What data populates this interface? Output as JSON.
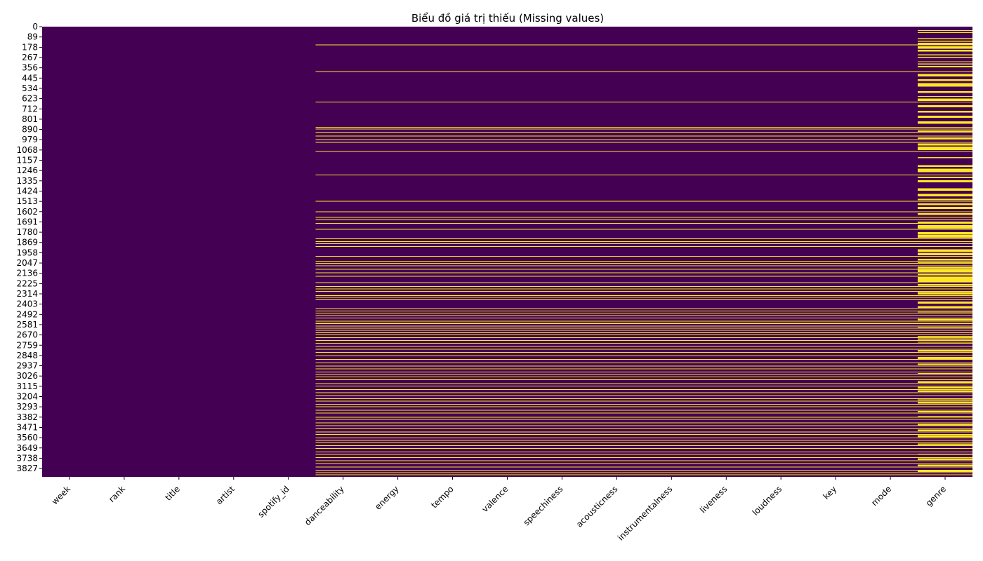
{
  "chart_data": {
    "type": "heatmap",
    "title": "Biểu đồ giá trị thiếu (Missing values)",
    "xlabel": "",
    "ylabel": "",
    "columns": [
      "week",
      "rank",
      "title",
      "artist",
      "spotify_id",
      "danceability",
      "energy",
      "tempo",
      "valence",
      "speechiness",
      "acousticness",
      "instrumentalness",
      "liveness",
      "loudness",
      "key",
      "mode",
      "genre"
    ],
    "row_count": 3900,
    "y_ticks": [
      0,
      89,
      178,
      267,
      356,
      445,
      534,
      623,
      712,
      801,
      890,
      979,
      1068,
      1157,
      1246,
      1335,
      1424,
      1513,
      1602,
      1691,
      1780,
      1869,
      1958,
      2047,
      2136,
      2225,
      2314,
      2403,
      2492,
      2581,
      2670,
      2759,
      2848,
      2937,
      3026,
      3115,
      3204,
      3293,
      3382,
      3471,
      3560,
      3649,
      3738,
      3827
    ],
    "colormap": "viridis",
    "color_present": "#440154",
    "color_missing": "#fde725",
    "colorbar": false,
    "audio_feature_missing_rows": [
      [
        155,
        159
      ],
      [
        385,
        389
      ],
      [
        650,
        654
      ],
      [
        868,
        871
      ],
      [
        884,
        888
      ],
      [
        910,
        913
      ],
      [
        945,
        948
      ],
      [
        975,
        978
      ],
      [
        998,
        1002
      ],
      [
        1078,
        1082
      ],
      [
        1282,
        1286
      ],
      [
        1510,
        1514
      ],
      [
        1602,
        1606
      ],
      [
        1650,
        1654
      ],
      [
        1670,
        1673
      ],
      [
        1700,
        1704
      ],
      [
        1754,
        1757
      ],
      [
        1836,
        1840
      ],
      [
        1860,
        1864
      ],
      [
        1878,
        1882
      ],
      [
        1900,
        1904
      ],
      [
        1986,
        1990
      ],
      [
        2028,
        2032
      ],
      [
        2046,
        2050
      ],
      [
        2068,
        2072
      ],
      [
        2100,
        2104
      ],
      [
        2128,
        2132
      ],
      [
        2160,
        2164
      ],
      [
        2215,
        2218
      ],
      [
        2248,
        2252
      ],
      [
        2270,
        2274
      ],
      [
        2290,
        2294
      ],
      [
        2326,
        2330
      ],
      [
        2342,
        2346
      ],
      [
        2364,
        2368
      ],
      [
        2440,
        2444
      ],
      [
        2460,
        2464
      ],
      [
        2478,
        2482
      ],
      [
        2500,
        2504
      ],
      [
        2522,
        2526
      ],
      [
        2548,
        2552
      ],
      [
        2568,
        2575
      ],
      [
        2590,
        2594
      ],
      [
        2608,
        2612
      ],
      [
        2626,
        2630
      ],
      [
        2650,
        2654
      ],
      [
        2664,
        2668
      ],
      [
        2690,
        2694
      ],
      [
        2715,
        2719
      ],
      [
        2740,
        2744
      ],
      [
        2768,
        2772
      ],
      [
        2790,
        2795
      ],
      [
        2820,
        2824
      ],
      [
        2850,
        2854
      ],
      [
        2880,
        2884
      ],
      [
        2910,
        2914
      ],
      [
        2936,
        2940
      ],
      [
        2960,
        2964
      ],
      [
        2988,
        2992
      ],
      [
        3010,
        3014
      ],
      [
        3030,
        3034
      ],
      [
        3055,
        3060
      ],
      [
        3088,
        3092
      ],
      [
        3110,
        3114
      ],
      [
        3140,
        3144
      ],
      [
        3168,
        3172
      ],
      [
        3196,
        3200
      ],
      [
        3220,
        3224
      ],
      [
        3240,
        3244
      ],
      [
        3268,
        3272
      ],
      [
        3290,
        3297
      ],
      [
        3320,
        3324
      ],
      [
        3345,
        3349
      ],
      [
        3380,
        3384
      ],
      [
        3400,
        3404
      ],
      [
        3428,
        3434
      ],
      [
        3455,
        3459
      ],
      [
        3482,
        3486
      ],
      [
        3508,
        3512
      ],
      [
        3530,
        3534
      ],
      [
        3560,
        3564
      ],
      [
        3580,
        3584
      ],
      [
        3600,
        3604
      ],
      [
        3628,
        3634
      ],
      [
        3650,
        3654
      ],
      [
        3680,
        3684
      ],
      [
        3702,
        3706
      ],
      [
        3730,
        3734
      ],
      [
        3758,
        3762
      ],
      [
        3782,
        3786
      ],
      [
        3812,
        3818
      ],
      [
        3838,
        3842
      ],
      [
        3860,
        3864
      ],
      [
        3878,
        3882
      ]
    ],
    "genre_extra_missing_rows": [
      [
        30,
        35
      ],
      [
        48,
        52
      ],
      [
        100,
        108
      ],
      [
        120,
        130
      ],
      [
        140,
        155
      ],
      [
        170,
        190
      ],
      [
        200,
        215
      ],
      [
        240,
        250
      ],
      [
        260,
        270
      ],
      [
        300,
        304
      ],
      [
        320,
        328
      ],
      [
        340,
        352
      ],
      [
        410,
        430
      ],
      [
        455,
        470
      ],
      [
        490,
        520
      ],
      [
        560,
        575
      ],
      [
        600,
        604
      ],
      [
        622,
        645
      ],
      [
        680,
        700
      ],
      [
        730,
        745
      ],
      [
        770,
        790
      ],
      [
        820,
        840
      ],
      [
        900,
        915
      ],
      [
        960,
        972
      ],
      [
        1010,
        1030
      ],
      [
        1040,
        1070
      ],
      [
        1130,
        1140
      ],
      [
        1200,
        1215
      ],
      [
        1230,
        1260
      ],
      [
        1300,
        1312
      ],
      [
        1330,
        1350
      ],
      [
        1400,
        1420
      ],
      [
        1450,
        1470
      ],
      [
        1490,
        1502
      ],
      [
        1530,
        1545
      ],
      [
        1560,
        1580
      ],
      [
        1615,
        1630
      ],
      [
        1690,
        1700
      ],
      [
        1720,
        1750
      ],
      [
        1780,
        1800
      ],
      [
        1805,
        1830
      ],
      [
        1930,
        1950
      ],
      [
        1960,
        1980
      ],
      [
        2010,
        2025
      ],
      [
        2040,
        2045
      ],
      [
        2080,
        2095
      ],
      [
        2105,
        2125
      ],
      [
        2140,
        2155
      ],
      [
        2170,
        2210
      ],
      [
        2230,
        2245
      ],
      [
        2300,
        2320
      ],
      [
        2380,
        2400
      ],
      [
        2420,
        2435
      ],
      [
        2470,
        2475
      ],
      [
        2530,
        2545
      ],
      [
        2600,
        2605
      ],
      [
        2680,
        2688
      ],
      [
        2700,
        2712
      ],
      [
        2730,
        2738
      ],
      [
        2800,
        2815
      ],
      [
        2860,
        2878
      ],
      [
        2920,
        2930
      ],
      [
        3000,
        3008
      ],
      [
        3070,
        3085
      ],
      [
        3120,
        3136
      ],
      [
        3150,
        3165
      ],
      [
        3230,
        3238
      ],
      [
        3250,
        3265
      ],
      [
        3330,
        3342
      ],
      [
        3370,
        3378
      ],
      [
        3440,
        3452
      ],
      [
        3490,
        3505
      ],
      [
        3540,
        3556
      ],
      [
        3610,
        3625
      ],
      [
        3700,
        3702
      ],
      [
        3740,
        3755
      ],
      [
        3795,
        3810
      ],
      [
        3845,
        3858
      ]
    ]
  }
}
